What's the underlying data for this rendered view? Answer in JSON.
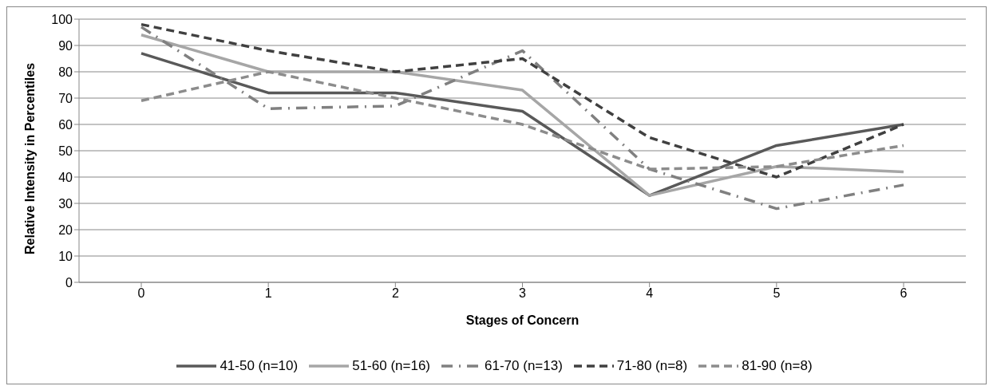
{
  "chart_data": {
    "type": "line",
    "xlabel": "Stages of Concern",
    "ylabel": "Relative Intensity in Percentiles",
    "categories": [
      "0",
      "1",
      "2",
      "3",
      "4",
      "5",
      "6"
    ],
    "ylim": [
      0,
      100
    ],
    "yticks": [
      0,
      10,
      20,
      30,
      40,
      50,
      60,
      70,
      80,
      90,
      100
    ],
    "grid": "y",
    "legend": "bottom",
    "marker": "none",
    "series": [
      {
        "name": "41-50 (n=10)",
        "color": "#595959",
        "line_style": "solid",
        "values": [
          87,
          72,
          72,
          65,
          33,
          52,
          60
        ]
      },
      {
        "name": "51-60 (n=16)",
        "color": "#a6a6a6",
        "line_style": "solid",
        "values": [
          94,
          80,
          80,
          73,
          33,
          44,
          42
        ]
      },
      {
        "name": "61-70 (n=13)",
        "color": "#808080",
        "line_style": "dashdot",
        "values": [
          97,
          66,
          67,
          88,
          43,
          28,
          37
        ]
      },
      {
        "name": "71-80 (n=8)",
        "color": "#404040",
        "line_style": "dashed",
        "values": [
          98,
          88,
          80,
          85,
          55,
          40,
          60
        ]
      },
      {
        "name": "81-90 (n=8)",
        "color": "#8c8c8c",
        "line_style": "dashed",
        "values": [
          69,
          80,
          70,
          60,
          43,
          44,
          52
        ]
      }
    ]
  }
}
